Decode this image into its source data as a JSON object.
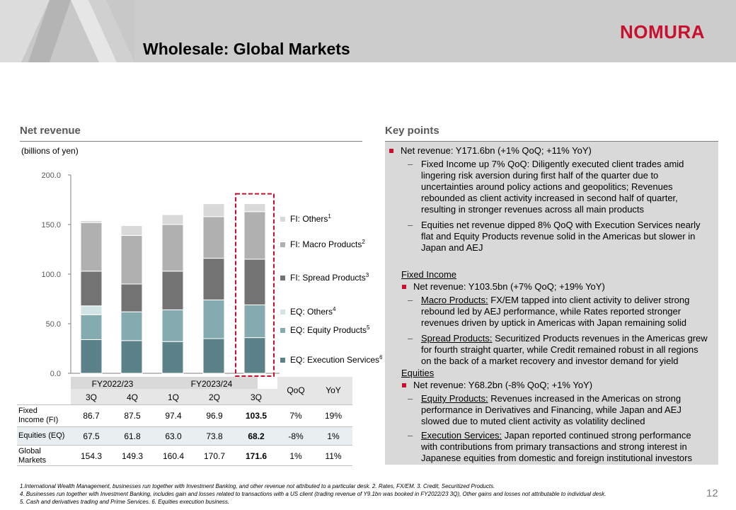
{
  "header": {
    "title": "Wholesale: Global Markets",
    "logo_text": "NOMURA"
  },
  "left": {
    "section_title": "Net revenue",
    "units": "(billions of yen)"
  },
  "chart_data": {
    "type": "bar",
    "stacked": true,
    "categories": [
      "3Q",
      "4Q",
      "1Q",
      "2Q",
      "3Q"
    ],
    "ylim": [
      0,
      200
    ],
    "yticks": [
      "0.0",
      "50.0",
      "100.0",
      "150.0",
      "200.0"
    ],
    "series": [
      {
        "name": "EQ: Execution Services",
        "sup": "6",
        "color": "#5b8189",
        "values": [
          34,
          33,
          32,
          35,
          36
        ]
      },
      {
        "name": "EQ: Equity Products",
        "sup": "5",
        "color": "#84abb0",
        "values": [
          25,
          29,
          32,
          39,
          33
        ]
      },
      {
        "name": "EQ: Others",
        "sup": "4",
        "color": "#d3e4e6",
        "values": [
          9,
          0,
          0,
          0,
          0
        ]
      },
      {
        "name": "FI: Spread Products",
        "sup": "3",
        "color": "#737373",
        "values": [
          35,
          28,
          39,
          42,
          46
        ]
      },
      {
        "name": "FI: Macro Products",
        "sup": "2",
        "color": "#b0b0b0",
        "values": [
          49,
          49,
          47,
          42,
          48
        ]
      },
      {
        "name": "FI: Others",
        "sup": "1",
        "color": "#d9d9d9",
        "values": [
          2,
          10,
          10,
          13,
          8
        ]
      }
    ],
    "highlight_index": 4,
    "grid": false
  },
  "table": {
    "fy1": "FY2022/23",
    "fy2": "FY2023/24",
    "cols": [
      "3Q",
      "4Q",
      "1Q",
      "2Q",
      "3Q"
    ],
    "qoq": "QoQ",
    "yoy": "YoY",
    "rows": [
      {
        "label1": "Fixed",
        "label2": "Income (FI)",
        "values": [
          "86.7",
          "87.5",
          "97.4",
          "96.9",
          "103.5"
        ],
        "qoq": "7%",
        "yoy": "19%"
      },
      {
        "label1": "Equities (EQ)",
        "label2": "",
        "values": [
          "67.5",
          "61.8",
          "63.0",
          "73.8",
          "68.2"
        ],
        "qoq": "-8%",
        "yoy": "1%"
      },
      {
        "label1": "Global",
        "label2": "Markets",
        "values": [
          "154.3",
          "149.3",
          "160.4",
          "170.7",
          "171.6"
        ],
        "qoq": "1%",
        "yoy": "11%"
      }
    ]
  },
  "key_points": {
    "section_title": "Key points",
    "b1": "Net revenue: Y171.6bn (+1% QoQ; +11% YoY)",
    "b1_d1": [
      "Fixed Income up 7% QoQ: Diligently executed client trades amid",
      "lingering risk aversion during first half of the quarter due to",
      "uncertainties around policy actions and geopolitics; Revenues",
      "rebounded as client activity increased in second half of quarter,",
      "resulting in stronger revenues across all main products"
    ],
    "b1_d2": [
      "Equities net revenue dipped 8% QoQ with Execution Services nearly",
      "flat and Equity Products revenue solid in the Americas but slower in",
      "Japan and AEJ"
    ],
    "fi_head": "Fixed Income",
    "fi_b": "Net revenue: Y103.5bn (+7% QoQ; +19% YoY)",
    "fi_d1_u": "Macro Products:",
    "fi_d1": [
      " FX/EM tapped into client activity to deliver strong",
      "rebound led by AEJ performance, while Rates reported stronger",
      "revenues driven by uptick in Americas with Japan remaining solid"
    ],
    "fi_d2_u": "Spread Products:",
    "fi_d2": [
      " Securitized Products revenues in the Americas grew",
      "for fourth straight quarter, while Credit remained robust in all regions",
      "on the back of a market recovery and investor demand for yield"
    ],
    "eq_head": "Equities",
    "eq_b": "Net revenue: Y68.2bn (-8% QoQ; +1% YoY)",
    "eq_d1_u": "Equity Products:",
    "eq_d1": [
      " Revenues increased in the Americas on strong",
      "performance in Derivatives and Financing, while Japan and AEJ",
      "slowed due to muted client activity as volatility declined"
    ],
    "eq_d2_u": "Execution Services:",
    "eq_d2": [
      " Japan reported continued strong performance",
      "with contributions from primary transactions and strong interest in",
      "Japanese equities from domestic and foreign institutional investors"
    ],
    "dash": "–"
  },
  "footnotes": {
    "line1": "1.International Wealth Management, businesses run together with Investment Banking, and other revenue not attributed to a particular desk.     2. Rates, FX/EM.     3. Credit, Securitized Products.",
    "line2": "4. Businesses run together with Investment Banking, includes gain and losses related to transactions with a US client (trading revenue of Y9.1bn was booked in FY2022/23 3Q), Other gains and losses not attributable to individual desk.",
    "line3": "5. Cash and derivatives trading and Prime Services.     6. Equities execution business."
  },
  "page_number": "12"
}
